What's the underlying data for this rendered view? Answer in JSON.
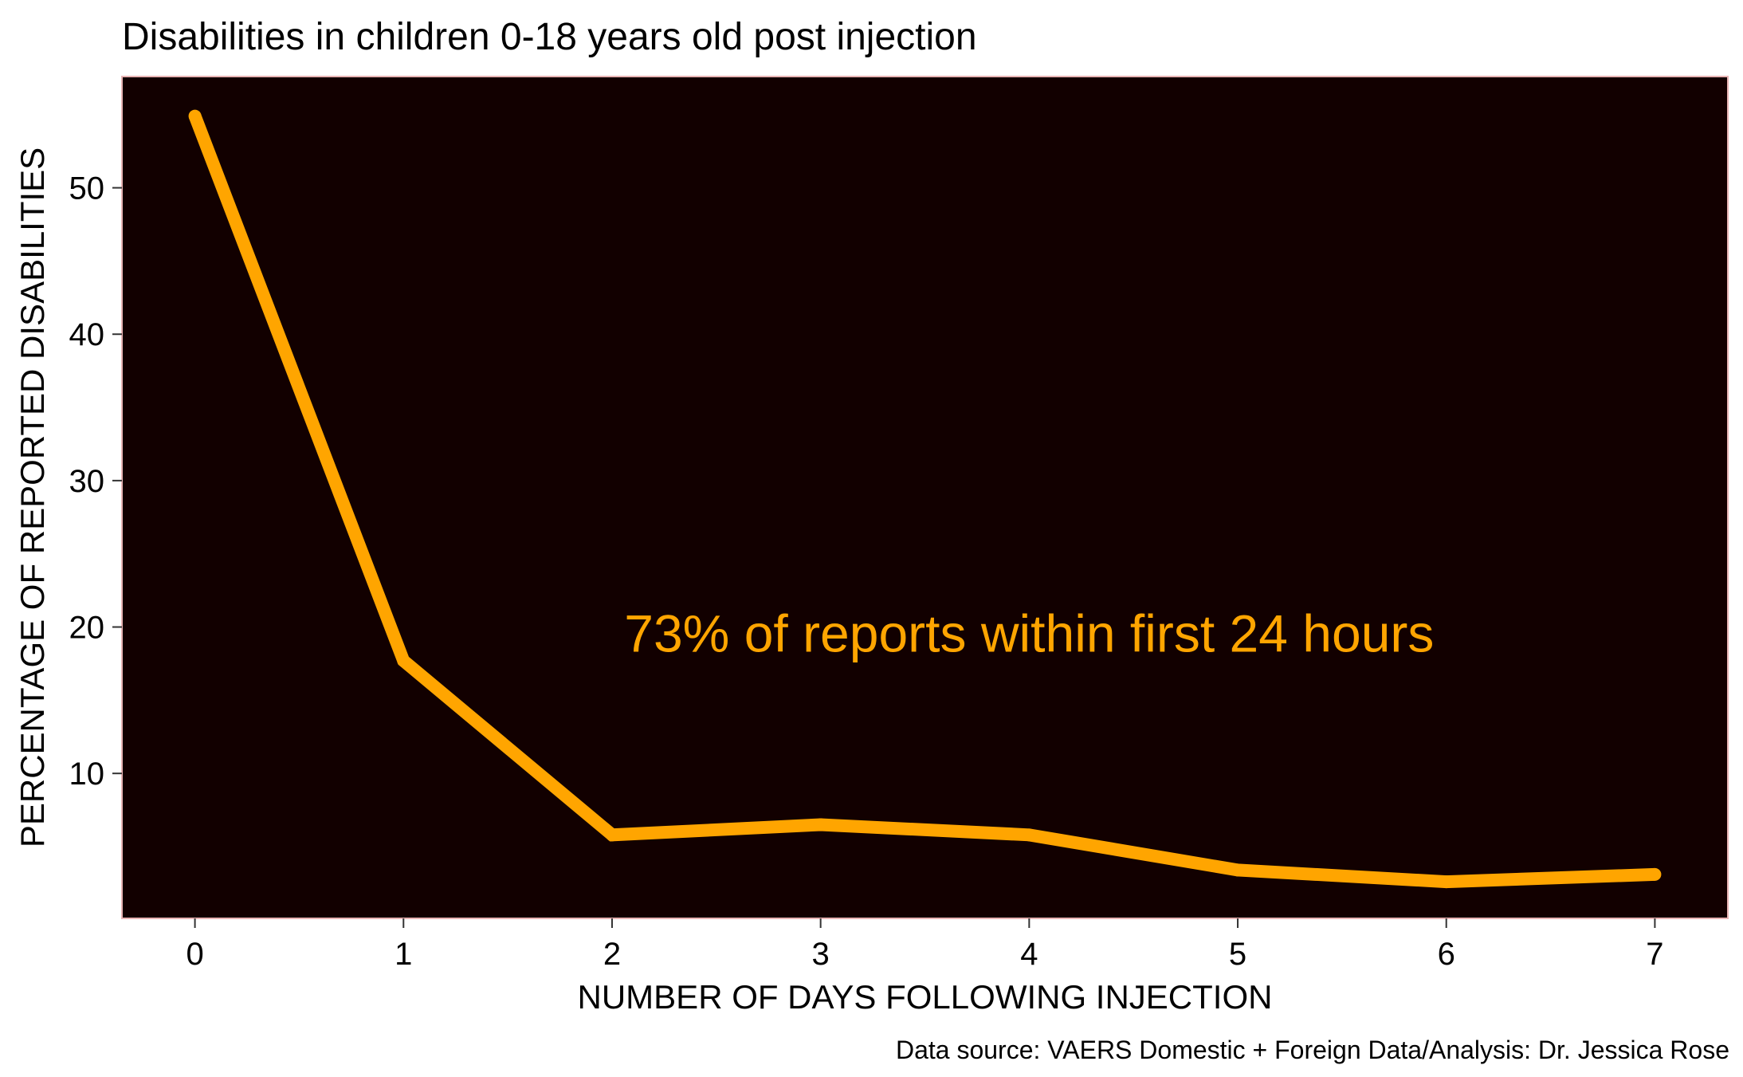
{
  "chart_data": {
    "type": "line",
    "title": "Disabilities in children 0-18 years old post injection",
    "xlabel": "NUMBER OF DAYS FOLLOWING INJECTION",
    "ylabel": "PERCENTAGE OF REPORTED DISABILITIES",
    "caption": "Data source: VAERS Domestic + Foreign Data/Analysis: Dr. Jessica Rose",
    "annotation": {
      "text": "73% of reports within first 24 hours",
      "x": 4.0,
      "y": 19.5
    },
    "x": [
      0,
      1,
      2,
      3,
      4,
      5,
      6,
      7
    ],
    "series": [
      {
        "values": [
          54.9,
          17.7,
          5.8,
          6.5,
          5.8,
          3.4,
          2.6,
          3.1
        ]
      }
    ],
    "xlim": [
      -0.35,
      7.35
    ],
    "ylim": [
      0.1,
      57.6
    ],
    "xticks": [
      0,
      1,
      2,
      3,
      4,
      5,
      6,
      7
    ],
    "yticks": [
      10,
      20,
      30,
      40,
      50
    ],
    "grid": false,
    "colors": {
      "line": "#FFA500",
      "panel_background": "#120000",
      "panel_border": "#E8B4B4",
      "annotation": "#FFA500"
    }
  }
}
